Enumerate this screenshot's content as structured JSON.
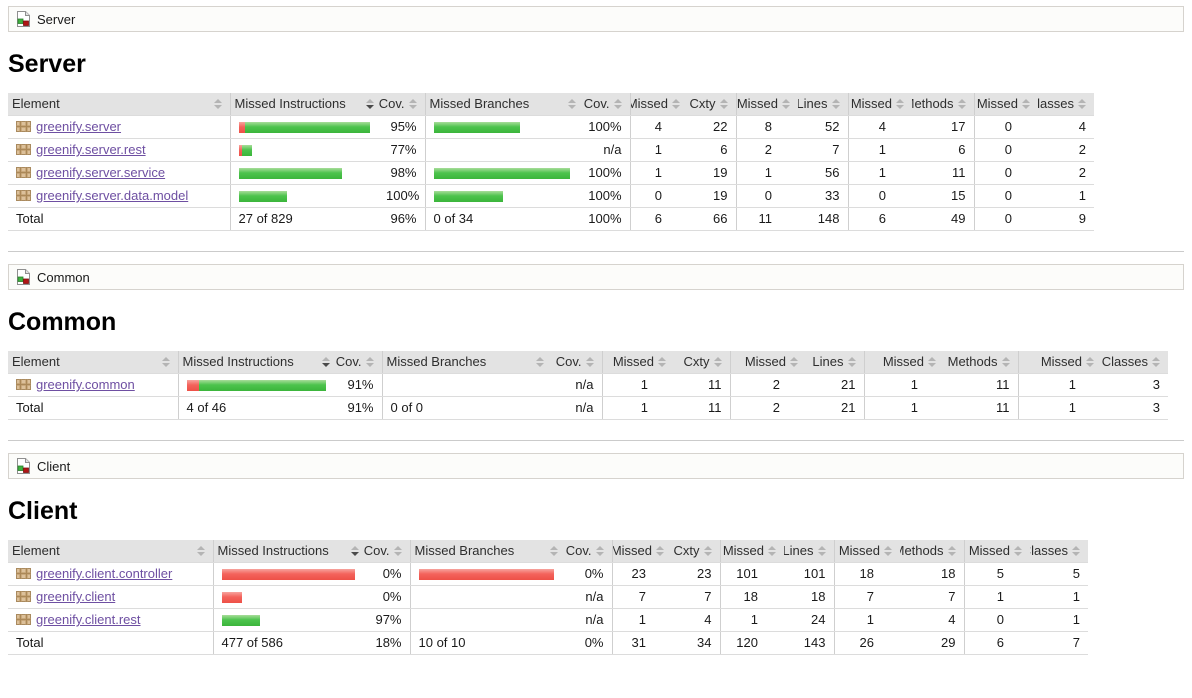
{
  "colors": {
    "bar_green": "#3bb53b",
    "bar_red": "#ee5047",
    "link_purple": "#6e4fa2",
    "header_gray": "#e3e3e3"
  },
  "icons": {
    "breadcrumb_icon": "coverage-group-icon",
    "package_icon": "java-package-icon",
    "sort_icon": "sort-arrows-icon"
  },
  "columns": [
    "Element",
    "Missed Instructions",
    "Cov.",
    "Missed Branches",
    "Cov.",
    "Missed",
    "Cxty",
    "Missed",
    "Lines",
    "Missed",
    "Methods",
    "Missed",
    "Classes"
  ],
  "sections": [
    {
      "id": "server",
      "breadcrumb": "Server",
      "title": "Server",
      "sorted_column": "Missed Instructions",
      "sorted_direction": "desc",
      "rows": [
        {
          "element": "greenify.server",
          "ins": {
            "red": 7,
            "green": 133
          },
          "ins_cov": "95%",
          "br": {
            "red": 0,
            "green": 86
          },
          "br_cov": "100%",
          "missed": "4",
          "cxty": "22",
          "missed_lines": "8",
          "lines": "52",
          "missed_methods": "4",
          "methods": "17",
          "missed_classes": "0",
          "classes": "4"
        },
        {
          "element": "greenify.server.rest",
          "ins": {
            "red": 3,
            "green": 10
          },
          "ins_cov": "77%",
          "br": null,
          "br_cov": "n/a",
          "missed": "1",
          "cxty": "6",
          "missed_lines": "2",
          "lines": "7",
          "missed_methods": "1",
          "methods": "6",
          "missed_classes": "0",
          "classes": "2"
        },
        {
          "element": "greenify.server.service",
          "ins": {
            "red": 0,
            "green": 103
          },
          "ins_cov": "98%",
          "br": {
            "red": 0,
            "green": 136
          },
          "br_cov": "100%",
          "missed": "1",
          "cxty": "19",
          "missed_lines": "1",
          "lines": "56",
          "missed_methods": "1",
          "methods": "11",
          "missed_classes": "0",
          "classes": "2"
        },
        {
          "element": "greenify.server.data.model",
          "ins": {
            "red": 0,
            "green": 48
          },
          "ins_cov": "100%",
          "br": {
            "red": 0,
            "green": 69
          },
          "br_cov": "100%",
          "missed": "0",
          "cxty": "19",
          "missed_lines": "0",
          "lines": "33",
          "missed_methods": "0",
          "methods": "15",
          "missed_classes": "0",
          "classes": "1"
        }
      ],
      "total": {
        "element": "Total",
        "ins": "27 of 829",
        "ins_cov": "96%",
        "br": "0 of 34",
        "br_cov": "100%",
        "missed": "6",
        "cxty": "66",
        "missed_lines": "11",
        "lines": "148",
        "missed_methods": "6",
        "methods": "49",
        "missed_classes": "0",
        "classes": "9"
      }
    },
    {
      "id": "common",
      "breadcrumb": "Common",
      "title": "Common",
      "sorted_column": "Missed Instructions",
      "sorted_direction": "desc",
      "rows": [
        {
          "element": "greenify.common",
          "ins": {
            "red": 13,
            "green": 135
          },
          "ins_cov": "91%",
          "br": null,
          "br_cov": "n/a",
          "missed": "1",
          "cxty": "11",
          "missed_lines": "2",
          "lines": "21",
          "missed_methods": "1",
          "methods": "11",
          "missed_classes": "1",
          "classes": "3"
        }
      ],
      "total": {
        "element": "Total",
        "ins": "4 of 46",
        "ins_cov": "91%",
        "br": "0 of 0",
        "br_cov": "n/a",
        "missed": "1",
        "cxty": "11",
        "missed_lines": "2",
        "lines": "21",
        "missed_methods": "1",
        "methods": "11",
        "missed_classes": "1",
        "classes": "3"
      }
    },
    {
      "id": "client",
      "breadcrumb": "Client",
      "title": "Client",
      "sorted_column": "Missed Instructions",
      "sorted_direction": "desc",
      "rows": [
        {
          "element": "greenify.client.controller",
          "ins": {
            "red": 140,
            "green": 0
          },
          "ins_cov": "0%",
          "br": {
            "red": 140,
            "green": 0
          },
          "br_cov": "0%",
          "missed": "23",
          "cxty": "23",
          "missed_lines": "101",
          "lines": "101",
          "missed_methods": "18",
          "methods": "18",
          "missed_classes": "5",
          "classes": "5"
        },
        {
          "element": "greenify.client",
          "ins": {
            "red": 20,
            "green": 0
          },
          "ins_cov": "0%",
          "br": null,
          "br_cov": "n/a",
          "missed": "7",
          "cxty": "7",
          "missed_lines": "18",
          "lines": "18",
          "missed_methods": "7",
          "methods": "7",
          "missed_classes": "1",
          "classes": "1"
        },
        {
          "element": "greenify.client.rest",
          "ins": {
            "red": 0,
            "green": 38
          },
          "ins_cov": "97%",
          "br": null,
          "br_cov": "n/a",
          "missed": "1",
          "cxty": "4",
          "missed_lines": "1",
          "lines": "24",
          "missed_methods": "1",
          "methods": "4",
          "missed_classes": "0",
          "classes": "1"
        }
      ],
      "total": {
        "element": "Total",
        "ins": "477 of 586",
        "ins_cov": "18%",
        "br": "10 of 10",
        "br_cov": "0%",
        "missed": "31",
        "cxty": "34",
        "missed_lines": "120",
        "lines": "143",
        "missed_methods": "26",
        "methods": "29",
        "missed_classes": "6",
        "classes": "7"
      }
    }
  ]
}
